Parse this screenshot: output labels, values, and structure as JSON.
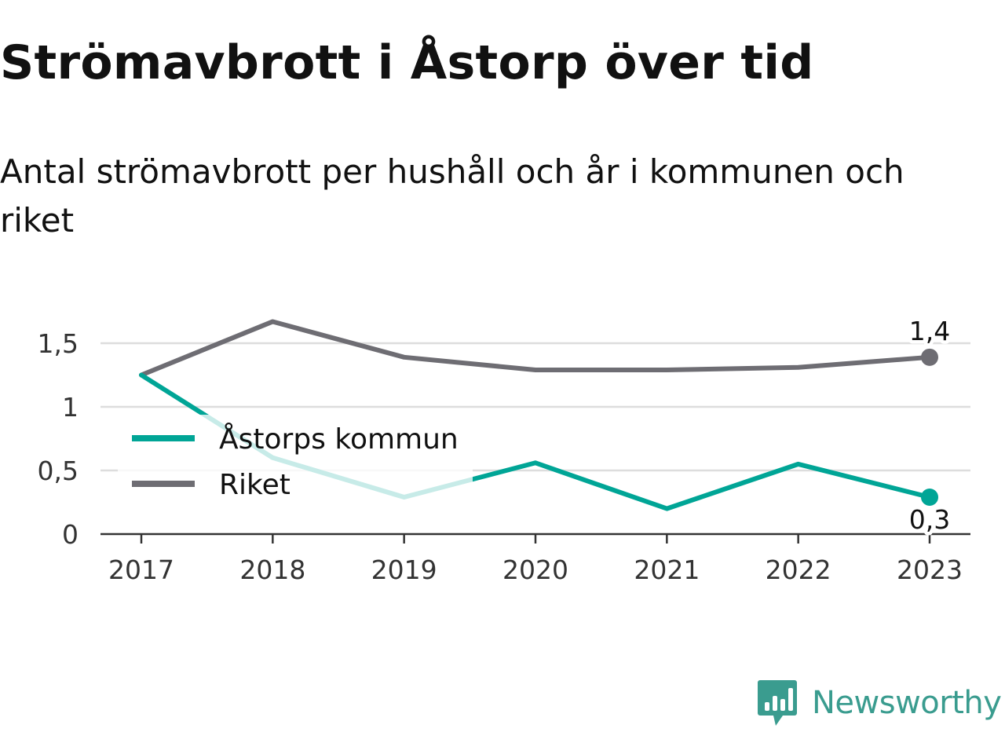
{
  "title": "Strömavbrott i Åstorp över tid",
  "subtitle": "Antal strömavbrott per hushåll och år i kommunen och riket",
  "brand": {
    "name": "Newsworthy",
    "icon": "newsworthy-logo-icon",
    "color": "#3a9c8f"
  },
  "chart_data": {
    "type": "line",
    "title": "Strömavbrott i Åstorp över tid",
    "subtitle": "Antal strömavbrott per hushåll och år i kommunen och riket",
    "xlabel": "",
    "ylabel": "",
    "categories": [
      "2017",
      "2018",
      "2019",
      "2020",
      "2021",
      "2022",
      "2023"
    ],
    "ylim": [
      0,
      1.75
    ],
    "yticks": [
      0,
      0.5,
      1,
      1.5
    ],
    "ytick_labels": [
      "0",
      "0,5",
      "1",
      "1,5"
    ],
    "grid": true,
    "legend_position": "left",
    "series": [
      {
        "name": "Åstorps kommun",
        "color": "#00a596",
        "values": [
          1.25,
          0.6,
          0.29,
          0.56,
          0.2,
          0.55,
          0.29
        ],
        "end_label": "0,3"
      },
      {
        "name": "Riket",
        "color": "#6e6d73",
        "values": [
          1.25,
          1.67,
          1.39,
          1.29,
          1.29,
          1.31,
          1.39
        ],
        "end_label": "1,4"
      }
    ]
  }
}
